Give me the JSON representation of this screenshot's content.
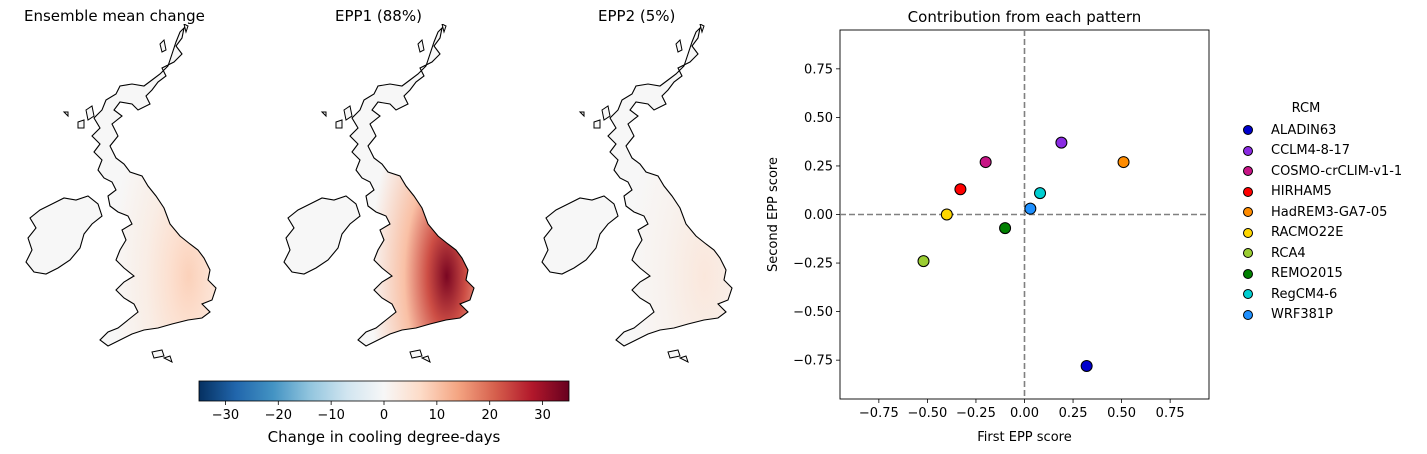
{
  "maps": [
    {
      "title": "Ensemble mean change",
      "intensity": 0.25
    },
    {
      "title": "EPP1 (88%)",
      "intensity": 1.0
    },
    {
      "title": "EPP2 (5%)",
      "intensity": 0.12
    }
  ],
  "colorbar": {
    "label": "Change in cooling degree-days",
    "ticks": [
      "−30",
      "−20",
      "−10",
      "0",
      "10",
      "20",
      "30"
    ],
    "range": [
      -35,
      35
    ]
  },
  "chart_data": {
    "type": "scatter",
    "title": "Contribution from each pattern",
    "xlabel": "First EPP score",
    "ylabel": "Second EPP score",
    "xlim": [
      -0.95,
      0.95
    ],
    "ylim": [
      -0.95,
      0.95
    ],
    "xticks": [
      "−0.75",
      "−0.50",
      "−0.25",
      "0.00",
      "0.25",
      "0.50",
      "0.75"
    ],
    "yticks": [
      "0.75",
      "0.50",
      "0.25",
      "0.00",
      "−0.25",
      "−0.50",
      "−0.75"
    ],
    "legend_title": "RCM",
    "legend_position": "right-outside",
    "points": [
      {
        "name": "ALADIN63",
        "x": 0.32,
        "y": -0.78,
        "color": "#0000cd"
      },
      {
        "name": "CCLM4-8-17",
        "x": 0.19,
        "y": 0.37,
        "color": "#8a2be2"
      },
      {
        "name": "COSMO-crCLIM-v1-1",
        "x": -0.2,
        "y": 0.27,
        "color": "#c71585"
      },
      {
        "name": "HIRHAM5",
        "x": -0.33,
        "y": 0.13,
        "color": "#ff0000"
      },
      {
        "name": "HadREM3-GA7-05",
        "x": 0.51,
        "y": 0.27,
        "color": "#ff8c00"
      },
      {
        "name": "RACMO22E",
        "x": -0.4,
        "y": 0.0,
        "color": "#ffd700"
      },
      {
        "name": "RCA4",
        "x": -0.52,
        "y": -0.24,
        "color": "#9acd32"
      },
      {
        "name": "REMO2015",
        "x": -0.1,
        "y": -0.07,
        "color": "#008000"
      },
      {
        "name": "RegCM4-6",
        "x": 0.08,
        "y": 0.11,
        "color": "#00ced1"
      },
      {
        "name": "WRF381P",
        "x": 0.03,
        "y": 0.03,
        "color": "#1e90ff"
      }
    ],
    "reference_lines": {
      "x": 0,
      "y": 0,
      "style": "dashed",
      "color": "#808080"
    }
  }
}
